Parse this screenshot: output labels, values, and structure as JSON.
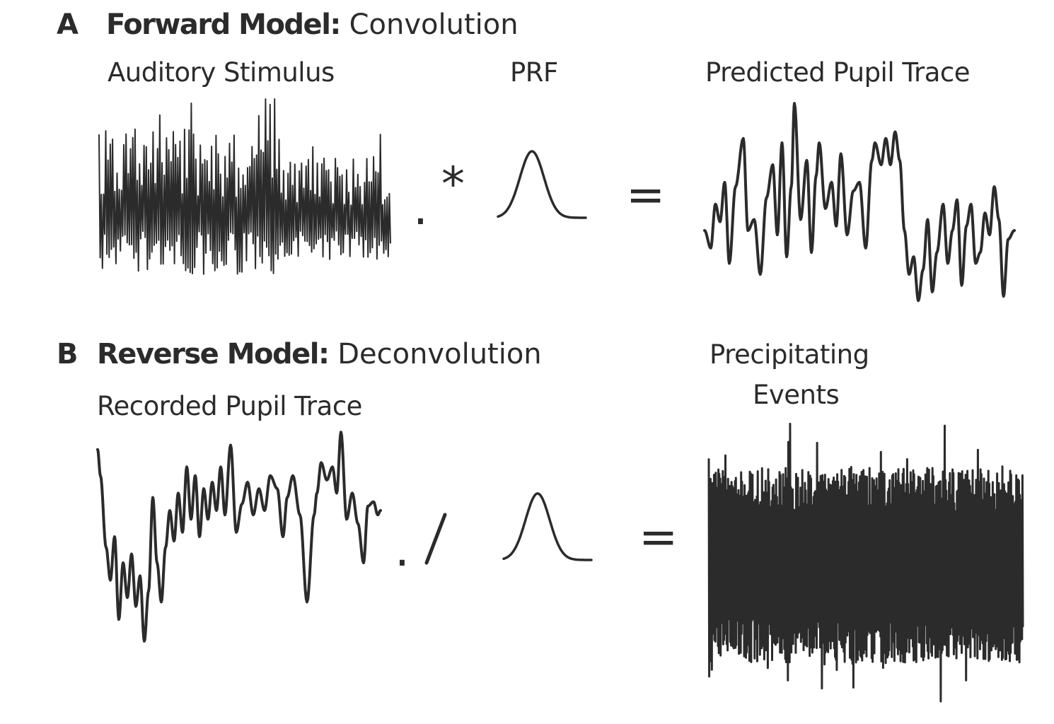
{
  "panel_a": {
    "letter": "A",
    "title_bold": "Forward Model:",
    "title_rest": "Convolution",
    "input_label": "Auditory Stimulus",
    "kernel_label": "PRF",
    "output_label": "Predicted Pupil Trace",
    "operator": ".*",
    "equals": "="
  },
  "panel_b": {
    "letter": "B",
    "title_bold": "Reverse Model:",
    "title_rest": "Deconvolution",
    "input_label": "Recorded Pupil Trace",
    "output_label_line1": "Precipitating",
    "output_label_line2": "Events",
    "operator": "./",
    "equals": "="
  },
  "colors": {
    "ink": "#2b2b2b",
    "background": "#ffffff"
  }
}
